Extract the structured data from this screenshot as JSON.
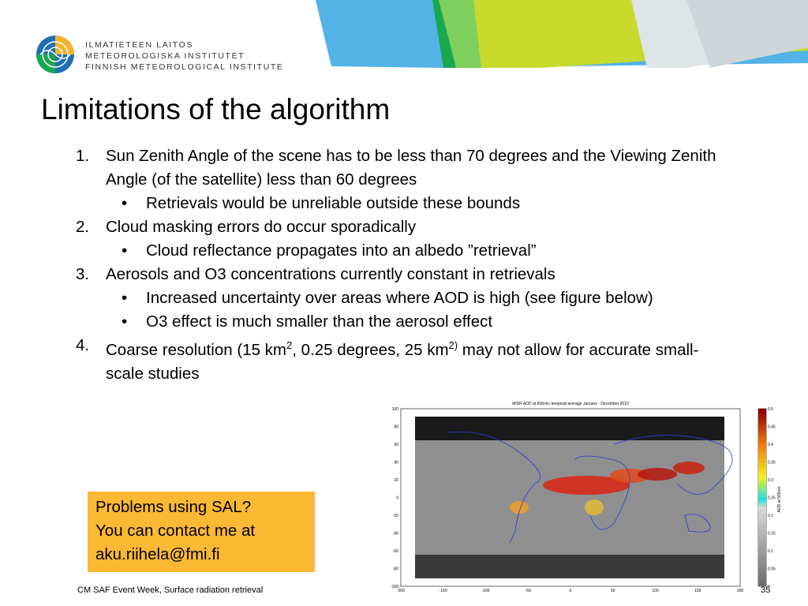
{
  "institute": {
    "name_lines": [
      "ILMATIETEEN LAITOS",
      "METEOROLOGISKA INSTITUTET",
      "FINNISH METEOROLOGICAL INSTITUTE"
    ],
    "colors": {
      "blue": "#1f6fb4",
      "yellow": "#f4b32b",
      "green": "#19a84f",
      "lightblue": "#53b2e6",
      "lime": "#c8da2b"
    }
  },
  "title": "Limitations of the algorithm",
  "items": [
    {
      "num": "1.",
      "text": "Sun Zenith Angle of the scene has to be less than 70 degrees and the Viewing Zenith Angle (of the satellite) less than 60 degrees",
      "bullets": [
        "Retrievals would be unreliable outside these bounds"
      ]
    },
    {
      "num": "2.",
      "text": "Cloud masking errors do occur sporadically",
      "bullets": [
        "Cloud reflectance propagates into an albedo ”retrieval”"
      ]
    },
    {
      "num": "3.",
      "text": "Aerosols and O3 concentrations currently constant in retrievals",
      "bullets": [
        "Increased uncertainty over areas where AOD is high (see figure below)",
        "O3 effect is much smaller than the aerosol effect"
      ]
    },
    {
      "num": "4.",
      "text_parts": [
        "Coarse resolution (15 km",
        "2",
        ", 0.25 degrees, 25 km",
        "2)",
        " may not allow for accurate small-scale studies"
      ]
    }
  ],
  "bullet_char": "•",
  "contact": {
    "lines": [
      "Problems using SAL?",
      "You can contact me at",
      "aku.riihela@fmi.fi"
    ],
    "bg": "#fbb832"
  },
  "footer": {
    "left": "CM SAF Event Week, Surface radiation retrieval",
    "page": "35"
  },
  "figure": {
    "title": "MISR AOD at 555nm, temporal average January - December 2010",
    "x_ticks": [
      "-200",
      "-150",
      "-100",
      "-50",
      "0",
      "50",
      "100",
      "150",
      "200"
    ],
    "y_ticks": [
      "100",
      "80",
      "60",
      "40",
      "20",
      "0",
      "-20",
      "-40",
      "-60",
      "-80",
      "-100"
    ],
    "colorbar_ticks": [
      "0.5",
      "0.45",
      "0.4",
      "0.35",
      "0.3",
      "0.25",
      "0.2",
      "0.15",
      "0.1",
      "0.05",
      "0"
    ],
    "colorbar_label": "AOD at 555nm",
    "xlim": [
      -200,
      200
    ],
    "ylim": [
      -100,
      100
    ],
    "clim": [
      0,
      0.5
    ]
  }
}
